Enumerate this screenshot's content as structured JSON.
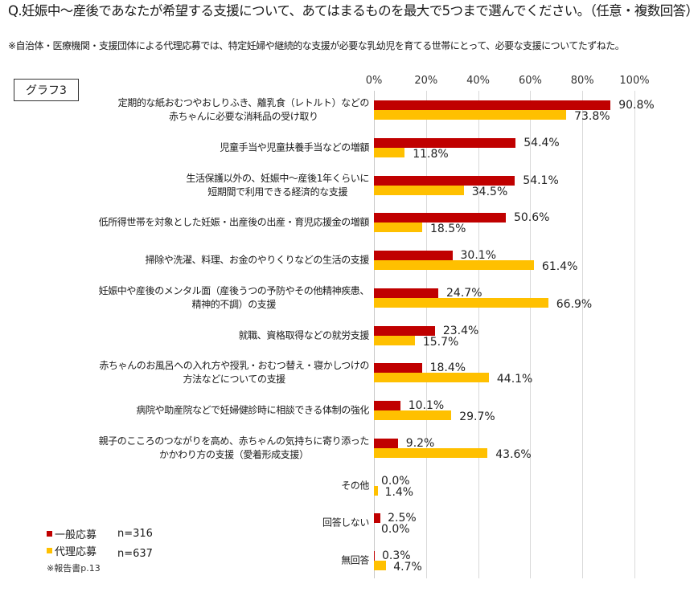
{
  "header": {
    "title": "Q.妊娠中～産後であなたが希望する支援について、あてはまるものを最大で5つまで選んでください。（任意・複数回答）",
    "note": "※自治体・医療機関・支援団体による代理応募では、特定妊婦や継続的な支援が必要な乳幼児を育てる世帯にとって、必要な支援についてたずねた。",
    "graph_label": "グラフ3"
  },
  "legend": {
    "items": [
      {
        "label": "一般応募",
        "n": "n=316",
        "color": "#c00000"
      },
      {
        "label": "代理応募",
        "n": "n=637",
        "color": "#ffc000"
      }
    ],
    "source": "※報告書p.13"
  },
  "axis": {
    "ticks": [
      "0%",
      "20%",
      "40%",
      "60%",
      "80%",
      "100%"
    ]
  },
  "chart_data": {
    "type": "bar",
    "orientation": "horizontal",
    "title": "Q.妊娠中～産後であなたが希望する支援について、あてはまるものを最大で5つまで選んでください。（任意・複数回答）",
    "xlabel": "",
    "ylabel": "",
    "xlim": [
      0,
      100
    ],
    "grid": true,
    "legend_position": "bottom-left",
    "categories": [
      "定期的な紙おむつやおしりふき、離乳食（レトルト）などの\n赤ちゃんに必要な消耗品の受け取り",
      "児童手当や児童扶養手当などの増額",
      "生活保護以外の、妊娠中～産後1年くらいに\n短期間で利用できる経済的な支援",
      "低所得世帯を対象とした妊娠・出産後の出産・育児応援金の増額",
      "掃除や洗濯、料理、お金のやりくりなどの生活の支援",
      "妊娠中や産後のメンタル面（産後うつの予防やその他精神疾患、\n精神的不調）の支援",
      "就職、資格取得などの就労支援",
      "赤ちゃんのお風呂への入れ方や授乳・おむつ替え・寝かしつけの\n方法などについての支援",
      "病院や助産院などで妊婦健診時に相談できる体制の強化",
      "親子のこころのつながりを高め、赤ちゃんの気持ちに寄り添った\nかかわり方の支援（愛着形成支援）",
      "その他",
      "回答しない",
      "無回答"
    ],
    "series": [
      {
        "name": "一般応募 n=316",
        "color": "#c00000",
        "values": [
          90.8,
          54.4,
          54.1,
          50.6,
          30.1,
          24.7,
          23.4,
          18.4,
          10.1,
          9.2,
          0.0,
          2.5,
          0.3
        ],
        "labels": [
          "90.8%",
          "54.4%",
          "54.1%",
          "50.6%",
          "30.1%",
          "24.7%",
          "23.4%",
          "18.4%",
          "10.1%",
          "9.2%",
          "0.0%",
          "2.5%",
          "0.3%"
        ]
      },
      {
        "name": "代理応募 n=637",
        "color": "#ffc000",
        "values": [
          73.8,
          11.8,
          34.5,
          18.5,
          61.4,
          66.9,
          15.7,
          44.1,
          29.7,
          43.6,
          1.4,
          0.0,
          4.7
        ],
        "labels": [
          "73.8%",
          "11.8%",
          "34.5%",
          "18.5%",
          "61.4%",
          "66.9%",
          "15.7%",
          "44.1%",
          "29.7%",
          "43.6%",
          "1.4%",
          "0.0%",
          "4.7%"
        ]
      }
    ]
  }
}
